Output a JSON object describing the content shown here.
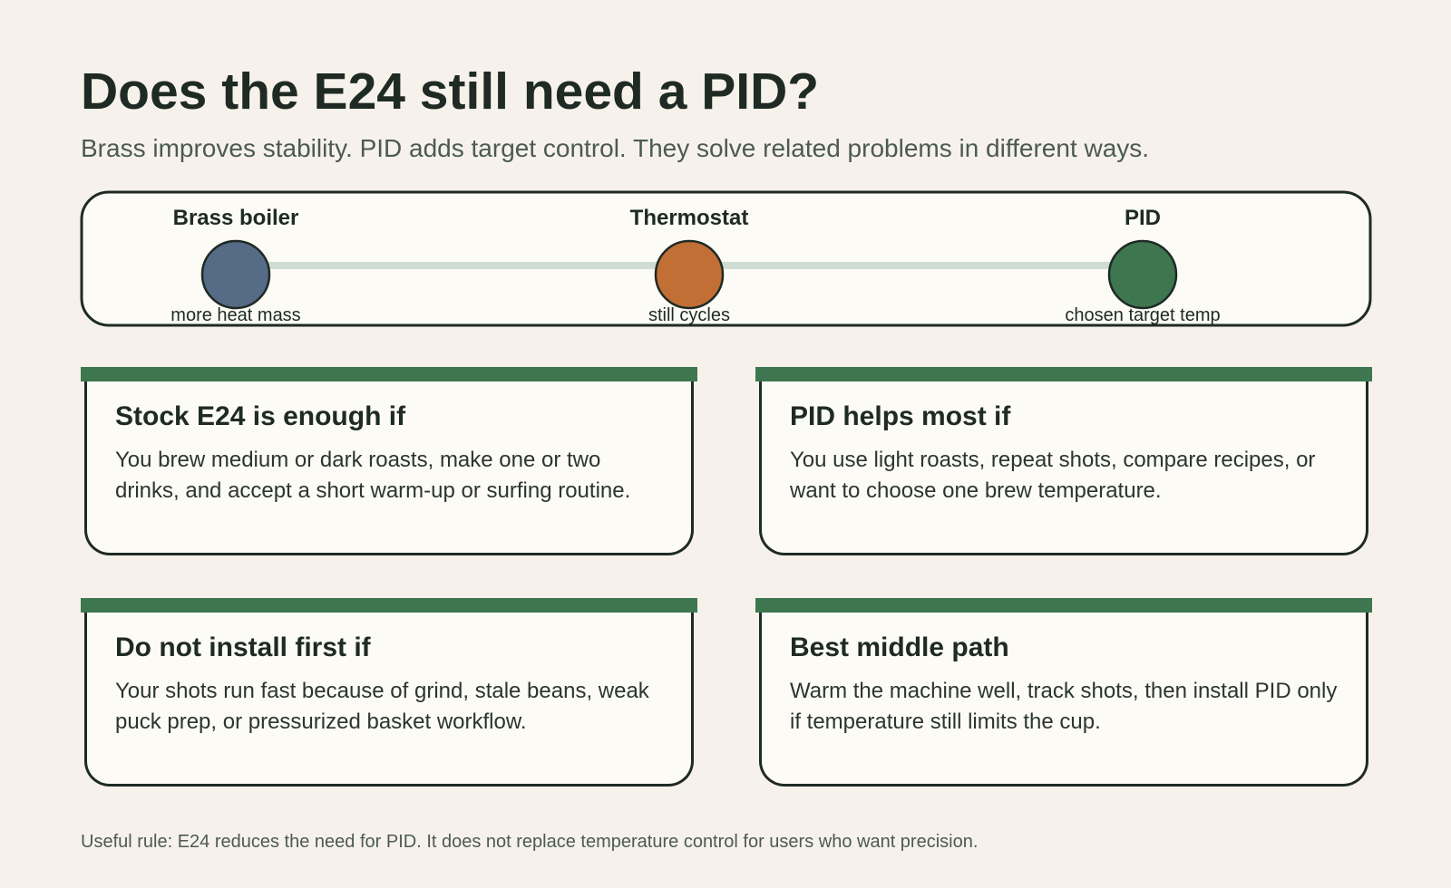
{
  "header": {
    "title": "Does the E24 still need a PID?",
    "subtitle": "Brass improves stability. PID adds target control. They solve related problems in different ways."
  },
  "timeline": {
    "nodes": [
      {
        "label": "Brass boiler",
        "caption": "more heat mass"
      },
      {
        "label": "Thermostat",
        "caption": "still cycles"
      },
      {
        "label": "PID",
        "caption": "chosen target temp"
      }
    ]
  },
  "cards": [
    {
      "title": "Stock E24 is enough if",
      "text": "You brew medium or dark roasts, make one or two drinks, and accept a short warm-up or surfing routine."
    },
    {
      "title": "PID helps most if",
      "text": "You use light roasts, repeat shots, compare recipes, or want to choose one brew temperature."
    },
    {
      "title": "Do not install first if",
      "text": "Your shots run fast because of grind, stale beans, weak puck prep, or pressurized basket workflow."
    },
    {
      "title": "Best middle path",
      "text": "Warm the machine well, track shots, then install PID only if temperature still limits the cup."
    }
  ],
  "footer": "Useful rule: E24 reduces the need for PID. It does not replace temperature control for users who want precision."
}
